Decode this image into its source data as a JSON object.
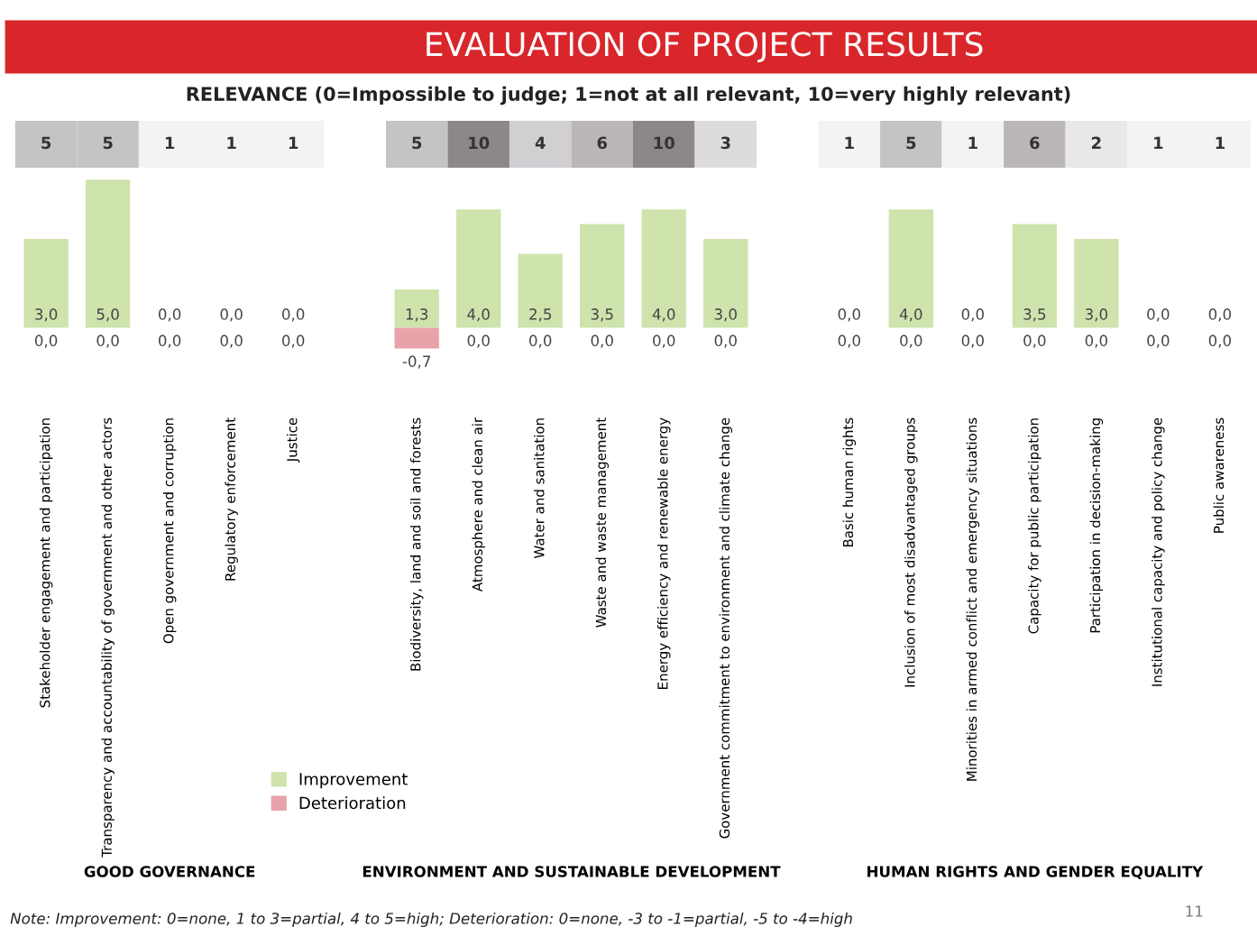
{
  "chart_data": [
    {
      "type": "heatmap",
      "title": "EVALUATION OF PROJECT RESULTS",
      "subtitle": "RELEVANCE (0=Impossible to judge; 1=not at all relevant, 10=very highly relevant)",
      "categories": [
        null,
        null,
        null,
        null,
        null,
        null,
        null,
        null,
        null,
        null,
        null,
        null,
        null,
        null,
        null,
        null,
        null,
        null,
        null,
        null
      ],
      "y_categories": [
        null
      ],
      "data_labels": true,
      "cells": [
        [
          5,
          5,
          1,
          1,
          1,
          null,
          5,
          10,
          4,
          6,
          10,
          3,
          null,
          1,
          5,
          1,
          6,
          2,
          1,
          1
        ]
      ]
    },
    {
      "type": "bar",
      "categories": [
        "Stakeholder engagement and participation",
        "Transparency and accountability of government and other actors",
        "Open government and corruption",
        "Regulatory enforcement",
        "Justice",
        null,
        "Biodiversity, land and soil and forests",
        "Atmosphere and clean air",
        "Water and sanitation",
        "Waste and waste management",
        "Energy efficiency and renewable energy",
        "Government commitment to environment and climate change",
        null,
        "Basic human rights",
        "Inclusion of most disadvantaged groups",
        "Minorities in armed conflict and emergency situations",
        "Capacity for public participation",
        "Participation in decision-making",
        "Institutional capacity and policy change",
        "Public awareness"
      ],
      "series": [
        {
          "name": "Improvement",
          "color": "#cfe3ad",
          "values": [
            3.0,
            5.0,
            0.0,
            0.0,
            0.0,
            null,
            1.3,
            4.0,
            2.5,
            3.5,
            4.0,
            3.0,
            null,
            0.0,
            4.0,
            0.0,
            3.5,
            3.0,
            0.0,
            0.0
          ],
          "value_labels": [
            "3,0",
            "5,0",
            "0,0",
            "0,0",
            "0,0",
            null,
            "1,3",
            "4,0",
            "2,5",
            "3,5",
            "4,0",
            "3,0",
            null,
            "0,0",
            "4,0",
            "0,0",
            "3,5",
            "3,0",
            "0,0",
            "0,0"
          ]
        },
        {
          "name": "Deterioration",
          "color": "#e8a3aa",
          "values": [
            0.0,
            0.0,
            0.0,
            0.0,
            0.0,
            null,
            -0.7,
            0.0,
            0.0,
            0.0,
            0.0,
            0.0,
            null,
            0.0,
            0.0,
            0.0,
            0.0,
            0.0,
            0.0,
            0.0
          ],
          "value_labels": [
            "0,0",
            "0,0",
            "0,0",
            "0,0",
            "0,0",
            null,
            "-0,7",
            "0,0",
            "0,0",
            "0,0",
            "0,0",
            "0,0",
            null,
            "0,0",
            "0,0",
            "0,0",
            "0,0",
            "0,0",
            "0,0",
            "0,0"
          ]
        }
      ],
      "legend": "bottom left",
      "annotations": [
        "GOOD GOVERNANCE",
        "ENVIRONMENT AND SUSTAINABLE DEVELOPMENT",
        "HUMAN RIGHTS AND GENDER EQUALITY",
        "Note: Improvement: 0=none, 1 to 3=partial, 4 to 5=high; Deterioration: 0=none, -3 to -1=partial, -5 to -4=high",
        "11"
      ]
    }
  ]
}
